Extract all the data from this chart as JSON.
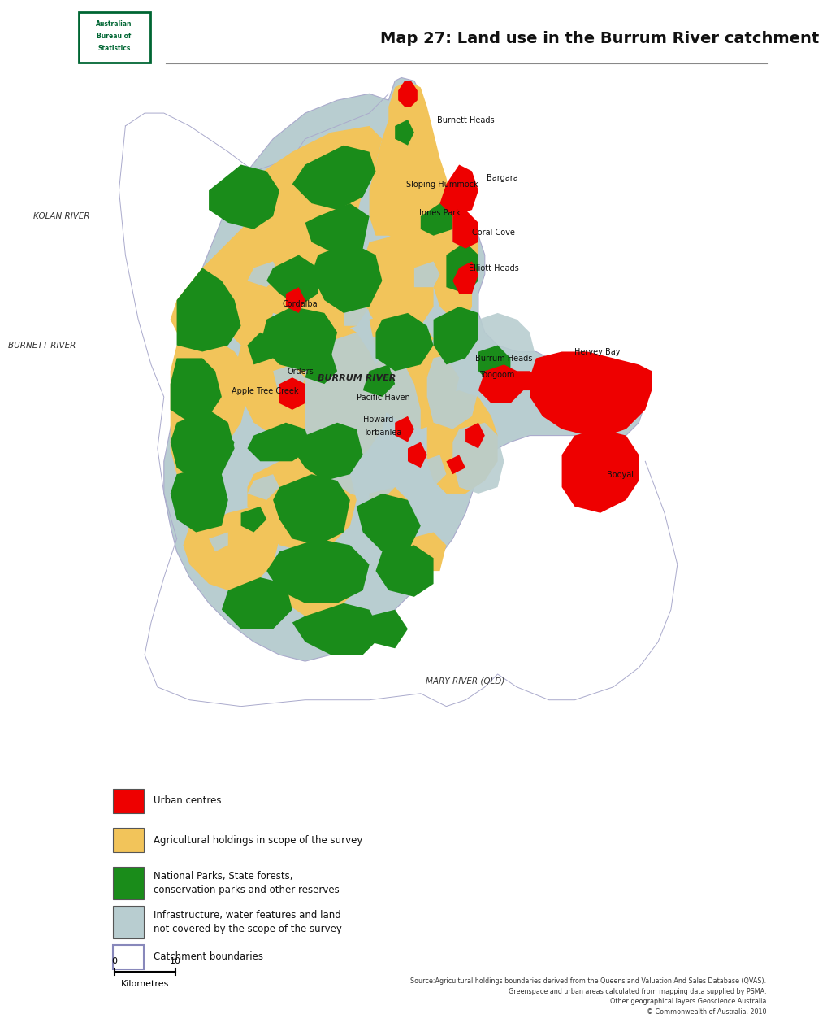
{
  "title": "Map 27: Land use in the Burrum River catchment",
  "title_fontsize": 14,
  "background_color": "#ffffff",
  "abs_logo_color": "#006633",
  "legend_items": [
    {
      "label": "Urban centres",
      "color": "#ee0000",
      "text_lines": [
        "Urban centres"
      ],
      "edge_color": "#555555"
    },
    {
      "label": "Agricultural holdings in scope of the survey",
      "color": "#f2c45a",
      "text_lines": [
        "Agricultural holdings in scope of the survey"
      ],
      "edge_color": "#555555"
    },
    {
      "label": "National Parks, State forests, conservation parks and other reserves",
      "color": "#1a8c1a",
      "text_lines": [
        "National Parks, State forests,",
        "conservation parks and other reserves"
      ],
      "edge_color": "#555555"
    },
    {
      "label": "Infrastructure, water features and land not covered by the scope of the survey",
      "color": "#b8cdd0",
      "text_lines": [
        "Infrastructure, water features and land",
        "not covered by the scope of the survey"
      ],
      "edge_color": "#555555"
    },
    {
      "label": "Catchment boundaries",
      "color": "#ffffff",
      "text_lines": [
        "Catchment boundaries"
      ],
      "edge_color": "#8888bb"
    }
  ],
  "source_text": "Source:Agricultural holdings boundaries derived from the Queensland Valuation And Sales Database (QVAS).\nGreenspace and urban areas calculated from mapping data supplied by PSMA.\nOther geographical layers Geoscience Australia\n© Commonwealth of Australia, 2010",
  "scale_label_0": "0",
  "scale_label_10": "10",
  "scale_unit": "Kilometres"
}
